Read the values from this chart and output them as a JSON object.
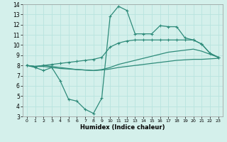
{
  "xlabel": "Humidex (Indice chaleur)",
  "xlim": [
    -0.5,
    23.5
  ],
  "ylim": [
    3,
    14
  ],
  "yticks": [
    3,
    4,
    5,
    6,
    7,
    8,
    9,
    10,
    11,
    12,
    13,
    14
  ],
  "xticks": [
    0,
    1,
    2,
    3,
    4,
    5,
    6,
    7,
    8,
    9,
    10,
    11,
    12,
    13,
    14,
    15,
    16,
    17,
    18,
    19,
    20,
    21,
    22,
    23
  ],
  "line_color": "#2e8b7a",
  "bg_color": "#d4f0eb",
  "grid_color": "#b8e4de",
  "line1_x": [
    0,
    1,
    2,
    3,
    4,
    5,
    6,
    7,
    8,
    9,
    10,
    11,
    12,
    13,
    14,
    15,
    16,
    17,
    18,
    19,
    20,
    21,
    22,
    23
  ],
  "line1_y": [
    8.0,
    7.8,
    7.5,
    7.8,
    6.5,
    4.7,
    4.5,
    3.7,
    3.3,
    4.8,
    12.8,
    13.8,
    13.4,
    11.1,
    11.1,
    11.1,
    11.9,
    11.8,
    11.8,
    10.7,
    10.5,
    10.1,
    9.2,
    8.8
  ],
  "line2_x": [
    0,
    1,
    2,
    3,
    4,
    5,
    6,
    7,
    8,
    9,
    10,
    11,
    12,
    13,
    14,
    15,
    16,
    17,
    18,
    19,
    20,
    21,
    22,
    23
  ],
  "line2_y": [
    8.0,
    7.9,
    8.0,
    8.1,
    8.2,
    8.3,
    8.4,
    8.5,
    8.6,
    8.8,
    9.8,
    10.2,
    10.4,
    10.5,
    10.5,
    10.5,
    10.5,
    10.5,
    10.5,
    10.5,
    10.5,
    10.1,
    9.2,
    8.8
  ],
  "line3_x": [
    0,
    1,
    2,
    3,
    4,
    5,
    6,
    7,
    8,
    9,
    10,
    11,
    12,
    13,
    14,
    15,
    16,
    17,
    18,
    19,
    20,
    21,
    22,
    23
  ],
  "line3_y": [
    8.0,
    7.9,
    8.0,
    7.9,
    7.8,
    7.7,
    7.6,
    7.55,
    7.5,
    7.6,
    7.8,
    8.1,
    8.3,
    8.5,
    8.7,
    8.9,
    9.1,
    9.3,
    9.4,
    9.5,
    9.6,
    9.4,
    9.1,
    8.8
  ],
  "line4_x": [
    0,
    1,
    2,
    3,
    4,
    5,
    6,
    7,
    8,
    9,
    10,
    11,
    12,
    13,
    14,
    15,
    16,
    17,
    18,
    19,
    20,
    21,
    22,
    23
  ],
  "line4_y": [
    8.0,
    7.9,
    7.9,
    7.8,
    7.7,
    7.65,
    7.6,
    7.55,
    7.5,
    7.55,
    7.65,
    7.8,
    7.9,
    8.0,
    8.1,
    8.2,
    8.3,
    8.4,
    8.5,
    8.55,
    8.6,
    8.6,
    8.65,
    8.7
  ]
}
